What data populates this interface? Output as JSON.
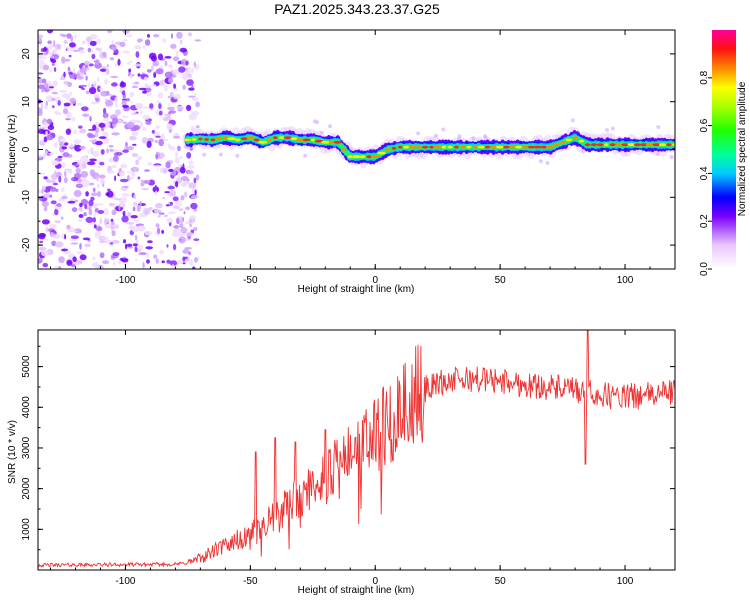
{
  "figure": {
    "title": "PAZ1.2025.343.23.37.G25"
  },
  "chart_data": [
    {
      "type": "heatmap",
      "name": "spectrogram",
      "xlabel": "Height of straight line (km)",
      "ylabel": "Frequency (Hz)",
      "xlim": [
        -135,
        120
      ],
      "ylim": [
        -25,
        25
      ],
      "xticks": [
        -100,
        -50,
        0,
        50,
        100
      ],
      "yticks": [
        -20,
        -10,
        0,
        10,
        20
      ],
      "colorbar": {
        "label": "Normalized spectral amplitude",
        "range": [
          0,
          1
        ],
        "ticks": [
          0.0,
          0.2,
          0.4,
          0.6,
          0.8
        ],
        "tick_labels": [
          "0.0",
          "0.2",
          "0.4",
          "0.6",
          "0.8"
        ]
      },
      "noise_region_x": [
        -135,
        -73
      ],
      "ridge": {
        "x": [
          -75,
          -70,
          -65,
          -60,
          -55,
          -50,
          -45,
          -40,
          -35,
          -30,
          -25,
          -20,
          -15,
          -10,
          -5,
          0,
          5,
          10,
          20,
          30,
          40,
          50,
          60,
          70,
          80,
          85,
          90,
          100,
          110,
          120
        ],
        "freq": [
          2.0,
          2.2,
          2.0,
          2.5,
          2.0,
          2.5,
          1.5,
          2.5,
          2.5,
          2.0,
          2.0,
          1.5,
          1.5,
          -1.5,
          -1.5,
          -1.5,
          0.0,
          0.5,
          0.5,
          0.5,
          0.5,
          0.5,
          0.5,
          0.5,
          2.5,
          1.0,
          1.0,
          1.0,
          1.0,
          1.0
        ]
      }
    },
    {
      "type": "line",
      "name": "snr",
      "xlabel": "Height of straight line (km)",
      "ylabel": "SNR (10 * v/v)",
      "xlim": [
        -135,
        120
      ],
      "ylim": [
        0,
        5900
      ],
      "xticks": [
        -100,
        -50,
        0,
        50,
        100
      ],
      "yticks": [
        1000,
        2000,
        3000,
        4000,
        5000
      ],
      "color": "#ee3333",
      "trend": {
        "x": [
          -135,
          -80,
          -75,
          -70,
          -65,
          -60,
          -55,
          -50,
          -45,
          -40,
          -35,
          -30,
          -25,
          -20,
          -15,
          -10,
          -5,
          0,
          5,
          10,
          15,
          20,
          25,
          30,
          40,
          50,
          60,
          70,
          80,
          85,
          90,
          100,
          110,
          120
        ],
        "y": [
          120,
          140,
          180,
          280,
          450,
          600,
          750,
          900,
          1050,
          1300,
          1550,
          1800,
          2050,
          2300,
          2500,
          2750,
          3000,
          3300,
          3600,
          3900,
          4200,
          4450,
          4600,
          4650,
          4700,
          4650,
          4550,
          4500,
          4400,
          4350,
          4300,
          4250,
          4300,
          4400
        ]
      },
      "spikes": [
        {
          "x": -48,
          "y": 2900
        },
        {
          "x": -40,
          "y": 3250
        },
        {
          "x": -32,
          "y": 3150
        },
        {
          "x": -20,
          "y": 3450
        },
        {
          "x": 85,
          "y": 5900
        },
        {
          "x": 84,
          "y": 2600
        }
      ]
    }
  ]
}
